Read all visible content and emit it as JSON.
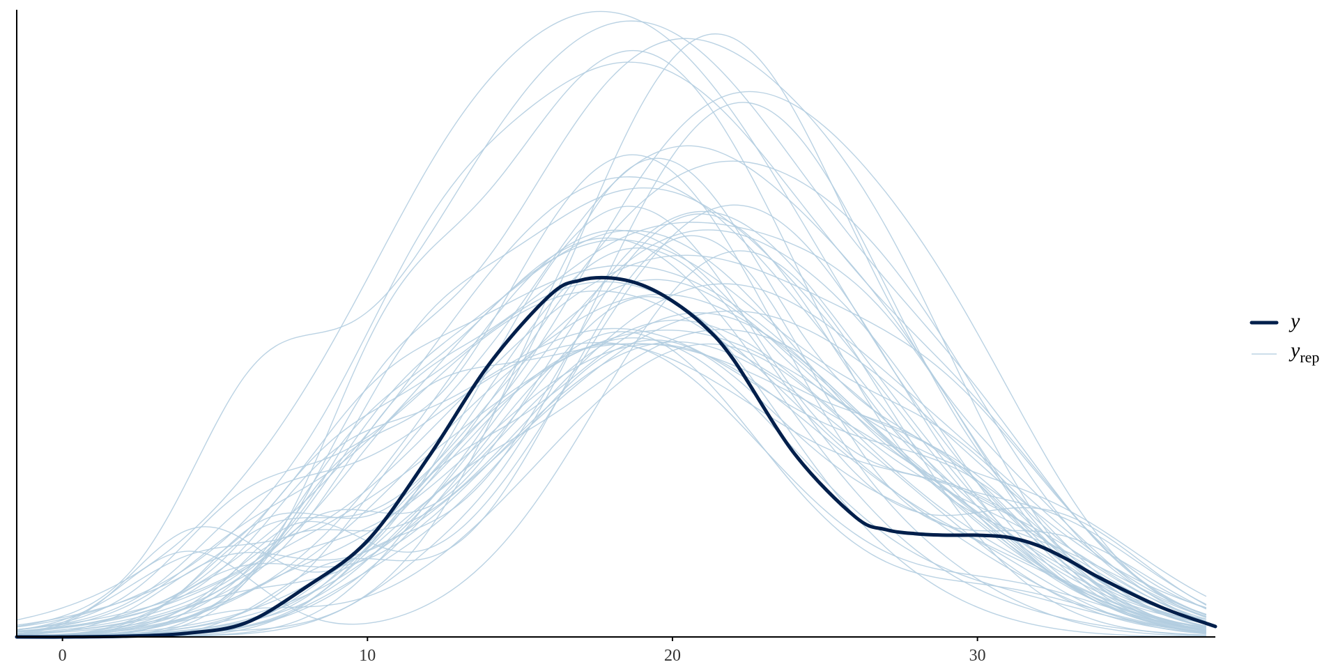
{
  "chart_data": {
    "type": "line",
    "title": "",
    "xlabel": "",
    "ylabel": "",
    "xlim": [
      -1.5,
      37.8
    ],
    "ylim": [
      0,
      0.09
    ],
    "x_ticks": [
      {
        "value": 0,
        "label": "0"
      },
      {
        "value": 10,
        "label": "10"
      },
      {
        "value": 20,
        "label": "20"
      },
      {
        "value": 30,
        "label": "30"
      }
    ],
    "grid": false,
    "legend_position": "right",
    "colors": {
      "y": "#011f4b",
      "yrep": "#b3cde0"
    },
    "legend": [
      {
        "key": "y",
        "main": "y",
        "sub": ""
      },
      {
        "key": "yrep",
        "main": "y",
        "sub": "rep"
      }
    ],
    "series": [
      {
        "key": "y",
        "x": [
          -1.5,
          0,
          2,
          4,
          6,
          8,
          10,
          12,
          14,
          16,
          17,
          18,
          19,
          20,
          21,
          22,
          24,
          26,
          27,
          28,
          29,
          30,
          31,
          32,
          33,
          34,
          36,
          37.8
        ],
        "y": [
          0.0,
          0.0,
          0.0001,
          0.0005,
          0.002,
          0.0072,
          0.0138,
          0.0258,
          0.0392,
          0.0491,
          0.0512,
          0.0515,
          0.0505,
          0.0482,
          0.0448,
          0.0398,
          0.0263,
          0.0172,
          0.0154,
          0.0148,
          0.0146,
          0.0146,
          0.0143,
          0.0131,
          0.011,
          0.0085,
          0.0043,
          0.0015
        ]
      }
    ],
    "replicates": {
      "count": 50,
      "x_range": [
        -1.5,
        37.8
      ],
      "peak_location_range": [
        17.5,
        22.5
      ],
      "peak_density_range": [
        0.042,
        0.09
      ]
    }
  }
}
